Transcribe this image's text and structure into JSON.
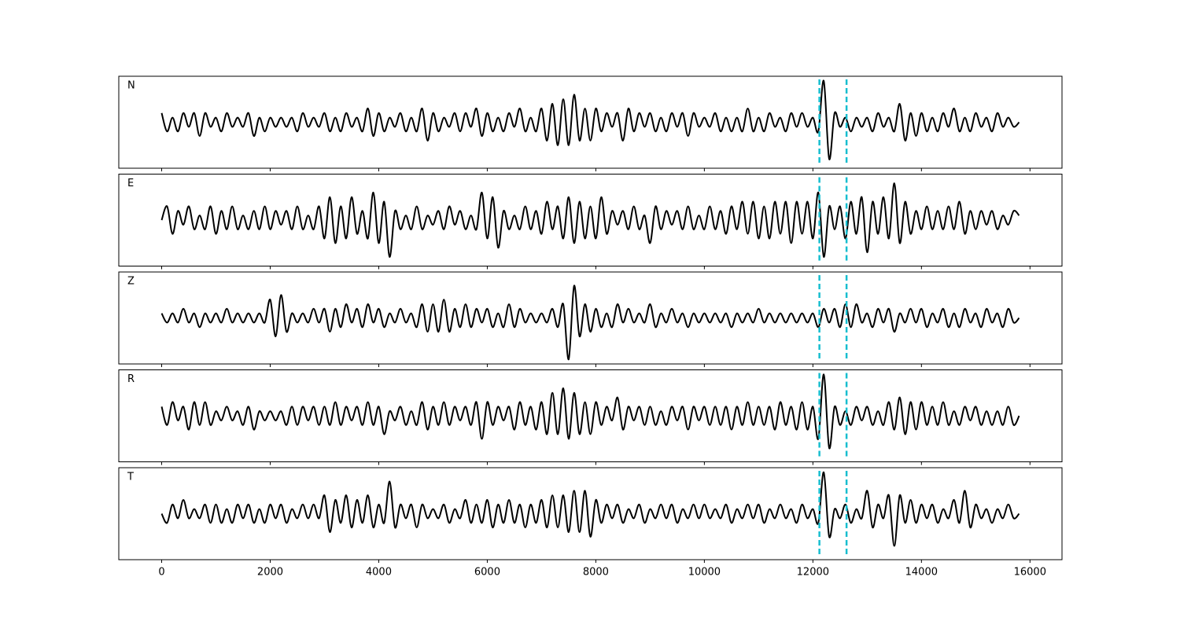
{
  "chart_data": {
    "type": "line",
    "x": [
      0,
      100,
      200,
      300,
      400,
      500,
      600,
      700,
      800,
      900,
      1000,
      1100,
      1200,
      1300,
      1400,
      1500,
      1600,
      1700,
      1800,
      1900,
      2000,
      2100,
      2200,
      2300,
      2400,
      2500,
      2600,
      2700,
      2800,
      2900,
      3000,
      3100,
      3200,
      3300,
      3400,
      3500,
      3600,
      3700,
      3800,
      3900,
      4000,
      4100,
      4200,
      4300,
      4400,
      4500,
      4600,
      4700,
      4800,
      4900,
      5000,
      5100,
      5200,
      5300,
      5400,
      5500,
      5600,
      5700,
      5800,
      5900,
      6000,
      6100,
      6200,
      6300,
      6400,
      6500,
      6600,
      6700,
      6800,
      6900,
      7000,
      7100,
      7200,
      7300,
      7400,
      7500,
      7600,
      7700,
      7800,
      7900,
      8000,
      8100,
      8200,
      8300,
      8400,
      8500,
      8600,
      8700,
      8800,
      8900,
      9000,
      9100,
      9200,
      9300,
      9400,
      9500,
      9600,
      9700,
      9800,
      9900,
      10000,
      10100,
      10200,
      10300,
      10400,
      10500,
      10600,
      10700,
      10800,
      10900,
      11000,
      11100,
      11200,
      11300,
      11400,
      11500,
      11600,
      11700,
      11800,
      11900,
      12000,
      12100,
      12200,
      12300,
      12400,
      12500,
      12600,
      12700,
      12800,
      12900,
      13000,
      13100,
      13200,
      13300,
      13400,
      13500,
      13600,
      13700,
      13800,
      13900,
      14000,
      14100,
      14200,
      14300,
      14400,
      14500,
      14600,
      14700,
      14800,
      14900,
      15000,
      15100,
      15200,
      15300,
      15400,
      15500,
      15600,
      15700,
      15800
    ],
    "series": [
      {
        "name": "N",
        "color": "#000000",
        "values": [
          2,
          -2,
          1,
          -2,
          2,
          -1,
          2,
          -3,
          2,
          -1,
          1,
          -2,
          2,
          -1,
          1,
          -1,
          2,
          -3,
          1,
          -2,
          1,
          -1,
          1,
          -1,
          1,
          -2,
          2,
          -1,
          1,
          -1,
          2,
          -2,
          1,
          -2,
          2,
          -1,
          1,
          -2,
          3,
          -3,
          2,
          -2,
          1,
          -1,
          2,
          -2,
          1,
          -2,
          3,
          -4,
          2,
          -2,
          1,
          -1,
          2,
          -2,
          2,
          -1,
          3,
          -3,
          2,
          -2,
          1,
          -2,
          2,
          -1,
          3,
          -2,
          1,
          -2,
          3,
          -4,
          4,
          -5,
          5,
          -5,
          6,
          -4,
          3,
          -4,
          3,
          -2,
          2,
          -1,
          2,
          -4,
          3,
          -2,
          2,
          -1,
          2,
          -2,
          1,
          -2,
          2,
          -1,
          2,
          -3,
          2,
          -1,
          1,
          -1,
          2,
          -2,
          1,
          -2,
          1,
          -2,
          3,
          -2,
          1,
          -2,
          2,
          -1,
          1,
          -2,
          2,
          -1,
          2,
          -1,
          1,
          -2,
          9,
          -8,
          2,
          -1,
          1,
          -2,
          1,
          -1,
          1,
          -2,
          2,
          -1,
          1,
          -2,
          4,
          -4,
          2,
          -3,
          2,
          -2,
          1,
          -2,
          2,
          -1,
          3,
          -2,
          1,
          -2,
          2,
          -1,
          1,
          -2,
          2,
          -1,
          1,
          -1,
          0
        ]
      },
      {
        "name": "E",
        "color": "#000000",
        "values": [
          0,
          3,
          -3,
          2,
          -1,
          3,
          -2,
          1,
          -2,
          3,
          -3,
          2,
          -2,
          3,
          -2,
          1,
          -2,
          2,
          -2,
          3,
          -2,
          2,
          -1,
          2,
          -2,
          3,
          -2,
          1,
          -2,
          3,
          -4,
          5,
          -5,
          3,
          -4,
          5,
          -3,
          2,
          -4,
          6,
          -5,
          4,
          -8,
          2,
          -2,
          1,
          -2,
          3,
          -2,
          1,
          -1,
          2,
          -2,
          3,
          -1,
          2,
          -2,
          1,
          -2,
          6,
          -4,
          5,
          -6,
          2,
          -2,
          1,
          -2,
          3,
          -2,
          2,
          -3,
          4,
          -2,
          3,
          -4,
          5,
          -5,
          4,
          -4,
          3,
          -4,
          5,
          -3,
          2,
          -1,
          2,
          -2,
          3,
          -2,
          1,
          -5,
          3,
          -2,
          2,
          -1,
          2,
          -2,
          3,
          -2,
          1,
          -2,
          3,
          -2,
          2,
          -3,
          3,
          -2,
          4,
          -3,
          4,
          -4,
          3,
          -4,
          4,
          -3,
          4,
          -5,
          4,
          -3,
          4,
          -4,
          6,
          -8,
          3,
          -2,
          3,
          -4,
          4,
          -3,
          5,
          -7,
          4,
          -3,
          5,
          -4,
          8,
          -5,
          4,
          -3,
          2,
          -2,
          3,
          -2,
          2,
          -2,
          3,
          -2,
          4,
          -3,
          2,
          -2,
          2,
          -1,
          2,
          -2,
          1,
          -1,
          2,
          1
        ]
      },
      {
        "name": "Z",
        "color": "#000000",
        "values": [
          1,
          -1,
          1,
          -1,
          2,
          -1,
          1,
          -2,
          1,
          -1,
          1,
          -1,
          2,
          -1,
          1,
          -1,
          1,
          -1,
          1,
          -1,
          4,
          -4,
          5,
          -3,
          1,
          -1,
          1,
          -1,
          2,
          -1,
          2,
          -3,
          2,
          -2,
          3,
          -1,
          2,
          -2,
          3,
          -1,
          2,
          -2,
          1,
          -1,
          2,
          -1,
          1,
          -2,
          3,
          -3,
          3,
          -3,
          4,
          -3,
          2,
          -2,
          3,
          -2,
          2,
          -1,
          2,
          -2,
          1,
          -2,
          3,
          -2,
          2,
          -1,
          1,
          -1,
          1,
          -1,
          2,
          -2,
          3,
          -9,
          7,
          -4,
          3,
          -3,
          2,
          -2,
          1,
          -2,
          3,
          -1,
          2,
          -1,
          1,
          -1,
          3,
          -2,
          1,
          -1,
          2,
          -1,
          1,
          -2,
          1,
          -1,
          1,
          -1,
          1,
          -1,
          1,
          -2,
          1,
          -1,
          1,
          -1,
          2,
          -1,
          1,
          -1,
          1,
          -1,
          1,
          -1,
          1,
          -1,
          1,
          -2,
          2,
          -1,
          2,
          -2,
          3,
          -2,
          3,
          -1,
          1,
          -2,
          2,
          -1,
          2,
          -3,
          1,
          -1,
          2,
          -1,
          2,
          -2,
          1,
          -1,
          2,
          -2,
          1,
          -2,
          2,
          -1,
          1,
          -2,
          2,
          -1,
          1,
          -2,
          2,
          -1,
          0
        ]
      },
      {
        "name": "R",
        "color": "#000000",
        "values": [
          2,
          -2,
          3,
          -1,
          2,
          -3,
          3,
          -2,
          3,
          -2,
          1,
          -1,
          2,
          -1,
          1,
          -2,
          2,
          -3,
          1,
          -1,
          1,
          -1,
          1,
          -2,
          2,
          -2,
          2,
          -1,
          2,
          -2,
          2,
          -2,
          3,
          -2,
          2,
          -1,
          2,
          -2,
          3,
          -2,
          2,
          -4,
          1,
          -1,
          2,
          -2,
          1,
          -2,
          3,
          -3,
          2,
          -2,
          3,
          -2,
          2,
          -1,
          2,
          -2,
          3,
          -5,
          3,
          -2,
          2,
          -1,
          2,
          -3,
          3,
          -2,
          2,
          -3,
          3,
          -4,
          5,
          -4,
          6,
          -5,
          5,
          -4,
          3,
          -4,
          3,
          -2,
          2,
          -1,
          4,
          -3,
          2,
          -1,
          2,
          -2,
          2,
          -2,
          1,
          -2,
          2,
          -1,
          2,
          -3,
          2,
          -1,
          2,
          -2,
          2,
          -2,
          2,
          -3,
          2,
          -2,
          3,
          -2,
          2,
          -2,
          2,
          -3,
          3,
          -2,
          2,
          -3,
          3,
          -3,
          2,
          -5,
          9,
          -7,
          2,
          -2,
          1,
          -2,
          2,
          -1,
          2,
          -2,
          1,
          -2,
          3,
          -3,
          4,
          -4,
          3,
          -3,
          3,
          -2,
          2,
          -2,
          3,
          -2,
          1,
          -2,
          2,
          -1,
          2,
          -2,
          1,
          -2,
          1,
          -2,
          2,
          -2,
          0
        ]
      },
      {
        "name": "T",
        "color": "#000000",
        "values": [
          0,
          -2,
          2,
          -1,
          3,
          -1,
          1,
          -1,
          2,
          -2,
          2,
          -2,
          1,
          -2,
          2,
          -1,
          2,
          -2,
          1,
          -2,
          2,
          -1,
          2,
          -2,
          1,
          -1,
          2,
          -1,
          2,
          -1,
          4,
          -4,
          3,
          -2,
          4,
          -3,
          3,
          -2,
          4,
          -3,
          2,
          -2,
          7,
          -3,
          2,
          -1,
          2,
          -3,
          2,
          -1,
          1,
          -1,
          2,
          -2,
          1,
          -1,
          3,
          -2,
          2,
          -2,
          3,
          -3,
          2,
          -2,
          3,
          -2,
          2,
          -3,
          2,
          -2,
          3,
          -3,
          4,
          -3,
          4,
          -4,
          5,
          -4,
          5,
          -5,
          3,
          -2,
          2,
          -1,
          2,
          -2,
          1,
          -1,
          2,
          -2,
          1,
          -1,
          2,
          -1,
          2,
          -2,
          1,
          -1,
          2,
          -1,
          2,
          -1,
          1,
          -1,
          2,
          -2,
          1,
          -1,
          2,
          -1,
          2,
          -2,
          1,
          -1,
          2,
          -1,
          1,
          -2,
          2,
          -1,
          1,
          -2,
          9,
          -5,
          1,
          -1,
          2,
          -2,
          1,
          -1,
          5,
          -3,
          2,
          -1,
          4,
          -7,
          4,
          -2,
          3,
          -2,
          2,
          -1,
          2,
          -2,
          1,
          -1,
          3,
          -2,
          5,
          -3,
          2,
          -1,
          1,
          -2,
          1,
          -1,
          2,
          -1,
          0
        ]
      }
    ],
    "markers": [
      12120,
      12620
    ],
    "marker_color": "#17becf",
    "xlim": [
      -790,
      16590
    ],
    "xticks": [
      0,
      2000,
      4000,
      6000,
      8000,
      10000,
      12000,
      14000,
      16000
    ],
    "ylim": [
      -10,
      10
    ]
  }
}
